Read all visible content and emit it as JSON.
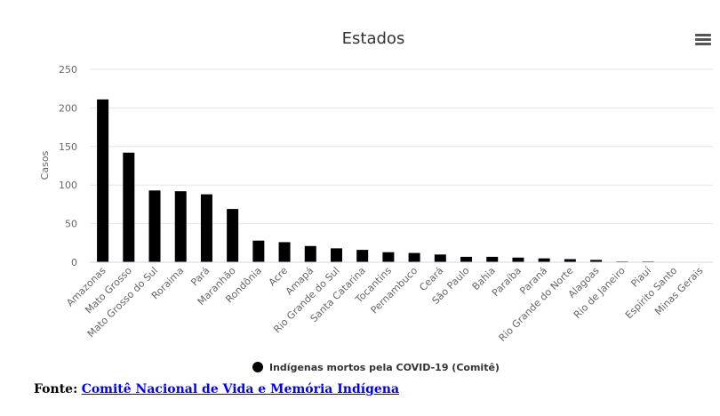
{
  "chart_data": {
    "type": "bar",
    "title": "Estados",
    "ylabel": "Casos",
    "xlabel": "",
    "ylim": [
      0,
      250
    ],
    "yticks": [
      0,
      50,
      100,
      150,
      200,
      250
    ],
    "grid": true,
    "legend": "bottom-center",
    "categories": [
      "Amazonas",
      "Mato Grosso",
      "Mato Grosso do Sul",
      "Roraima",
      "Pará",
      "Maranhão",
      "Rondônia",
      "Acre",
      "Amapá",
      "Rio Grande do Sul",
      "Santa Catarina",
      "Tocantins",
      "Pernambuco",
      "Ceará",
      "São Paulo",
      "Bahia",
      "Paraíba",
      "Paraná",
      "Rio Grande do Norte",
      "Alagoas",
      "Rio de Janeiro",
      "Piauí",
      "Espírito Santo",
      "Minas Gerais"
    ],
    "series": [
      {
        "name": "Indígenas mortos pela COVID-19 (Comitê)",
        "color": "#000000",
        "values": [
          211,
          142,
          93,
          92,
          88,
          69,
          28,
          26,
          21,
          18,
          16,
          13,
          12,
          10,
          7,
          7,
          6,
          5,
          4,
          3,
          1,
          1,
          0,
          0
        ]
      }
    ]
  },
  "menu_icon": "hamburger-menu-icon",
  "source": {
    "label": "Fonte:",
    "link_text": "Comitê Nacional de Vida e Memória Indígena"
  }
}
